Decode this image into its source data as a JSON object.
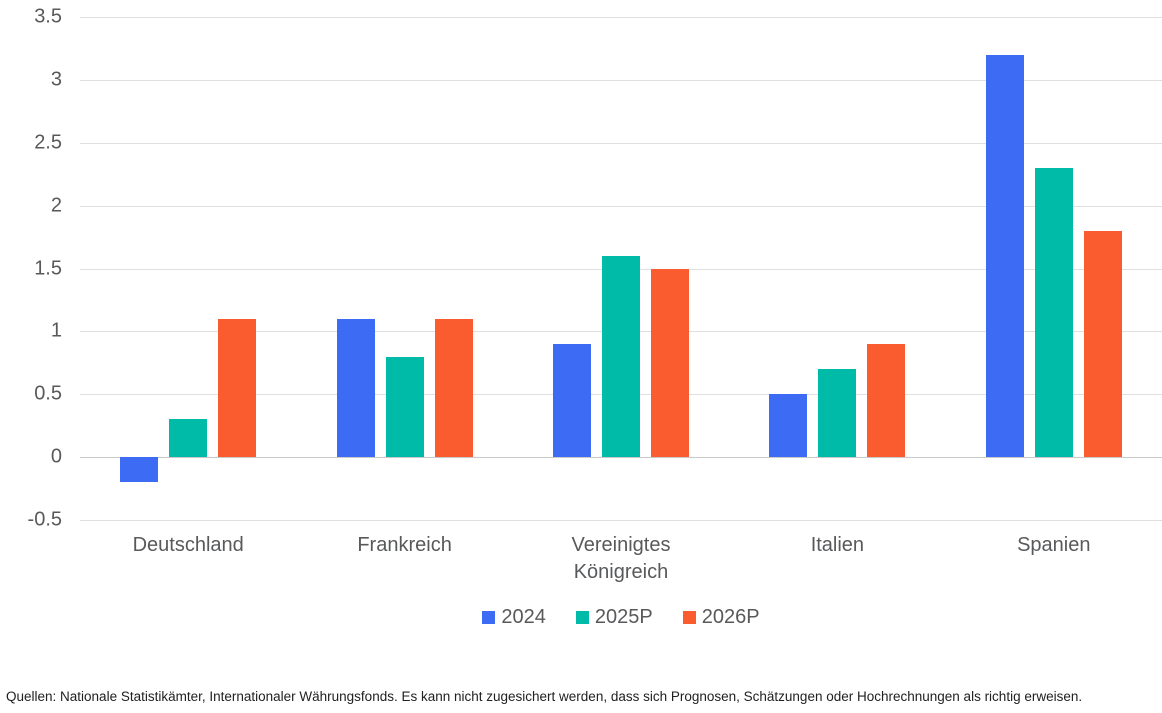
{
  "chart_data": {
    "type": "bar",
    "title": "",
    "xlabel": "",
    "ylabel": "",
    "categories": [
      "Deutschland",
      "Frankreich",
      "Vereinigtes Königreich",
      "Italien",
      "Spanien"
    ],
    "series": [
      {
        "name": "2024",
        "color": "#3D6BF4",
        "values": [
          -0.2,
          1.1,
          0.9,
          0.5,
          3.2
        ]
      },
      {
        "name": "2025P",
        "color": "#00BBA8",
        "values": [
          0.3,
          0.8,
          1.6,
          0.7,
          2.3
        ]
      },
      {
        "name": "2026P",
        "color": "#FA5C30",
        "values": [
          1.1,
          1.1,
          1.5,
          0.9,
          1.8
        ]
      }
    ],
    "ylim": [
      -0.5,
      3.5
    ],
    "yticks": [
      "3.5",
      "3",
      "2.5",
      "2",
      "1.5",
      "1",
      "0.5",
      "0",
      "-0.5"
    ],
    "grid": true,
    "legend_position": "bottom"
  },
  "footer": {
    "source_note": "Quellen: Nationale Statistikämter, Internationaler Währungsfonds. Es kann nicht zugesichert werden, dass sich Prognosen, Schätzungen oder Hochrechnungen als richtig erweisen."
  },
  "style": {
    "axis_text_color": "#58595B",
    "grid_color": "#E0E0E0",
    "zero_line_color": "#C9C9C9",
    "footer_text_color": "#212121",
    "background": "#FFFFFF"
  }
}
